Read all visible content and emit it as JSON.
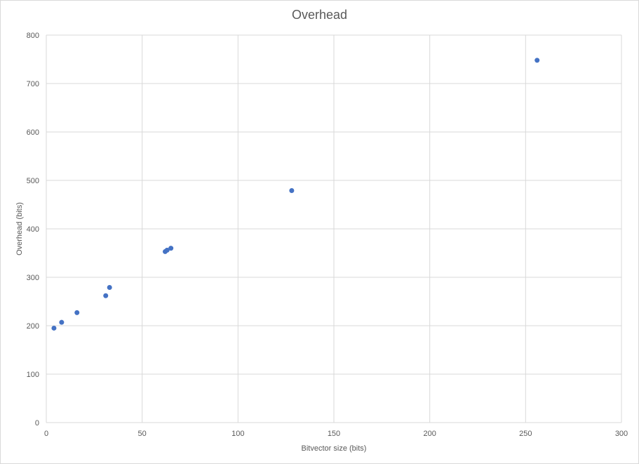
{
  "chart_data": {
    "type": "scatter",
    "title": "Overhead",
    "xlabel": "Bitvector size (bits)",
    "ylabel": "Overhead (bits)",
    "xlim": [
      0,
      300
    ],
    "ylim": [
      0,
      800
    ],
    "xticks": [
      0,
      50,
      100,
      150,
      200,
      250,
      300
    ],
    "yticks": [
      0,
      100,
      200,
      300,
      400,
      500,
      600,
      700,
      800
    ],
    "grid": true,
    "legend": "none",
    "marker_color": "#4472c4",
    "series": [
      {
        "x": [
          4,
          8,
          16,
          31,
          33,
          62,
          63,
          65,
          128,
          256
        ],
        "y": [
          195,
          207,
          227,
          262,
          279,
          353,
          356,
          360,
          479,
          748
        ]
      }
    ]
  }
}
